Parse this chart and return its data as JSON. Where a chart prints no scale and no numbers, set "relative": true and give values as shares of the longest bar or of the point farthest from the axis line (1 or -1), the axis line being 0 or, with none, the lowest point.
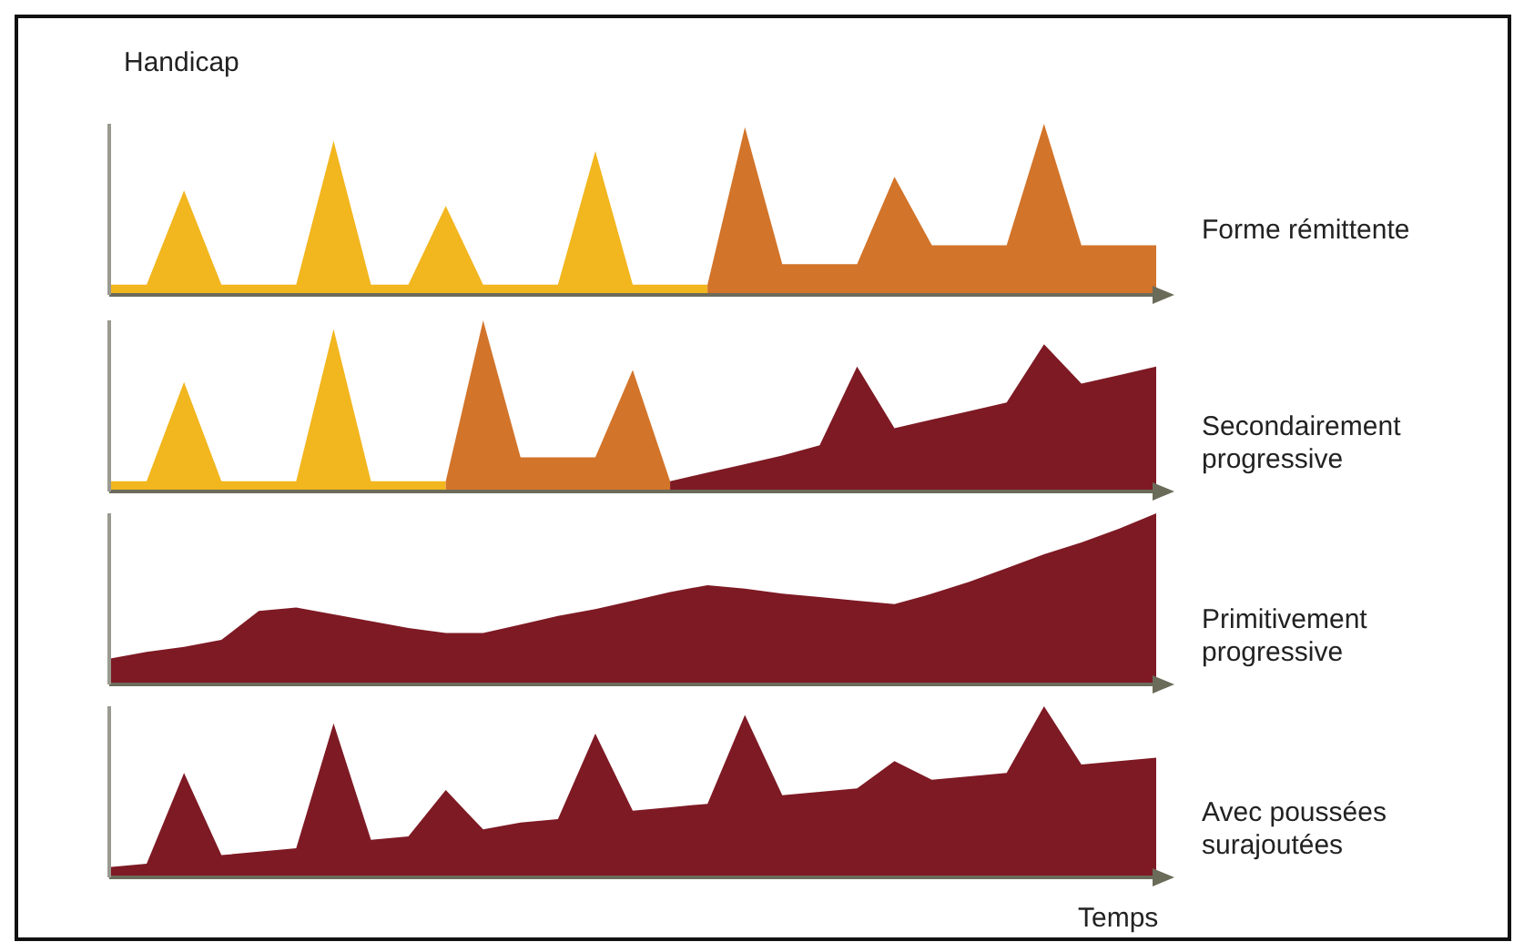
{
  "chart_data": [
    {
      "type": "area",
      "annotations": [
        "Forme rémittente"
      ],
      "ylabel": "Handicap",
      "relative": true,
      "categories": [
        null,
        null,
        null,
        null,
        null,
        null,
        null,
        null,
        null,
        null,
        null,
        null,
        null,
        null,
        null,
        null,
        null,
        null,
        null,
        null,
        null,
        null,
        null,
        null,
        null,
        null,
        null,
        null,
        null
      ],
      "series": [
        {
          "color": "#f2b61e",
          "values": [
            0.06,
            0.06,
            0.61,
            0.06,
            0.06,
            0.06,
            0.9,
            0.06,
            0.06,
            0.52,
            0.06,
            0.06,
            0.06,
            0.84,
            0.06,
            0.06,
            0.06,
            null,
            null,
            null,
            null,
            null,
            null,
            null,
            null,
            null,
            null,
            null,
            null
          ]
        },
        {
          "color": "#d2742a",
          "values": [
            null,
            null,
            null,
            null,
            null,
            null,
            null,
            null,
            null,
            null,
            null,
            null,
            null,
            null,
            null,
            null,
            0.06,
            0.98,
            0.18,
            0.18,
            0.18,
            0.69,
            0.29,
            0.29,
            0.29,
            1.0,
            0.29,
            0.29,
            0.29
          ]
        }
      ]
    },
    {
      "type": "area",
      "annotations": [
        "Secondairement progressive"
      ],
      "relative": true,
      "categories": [
        null,
        null,
        null,
        null,
        null,
        null,
        null,
        null,
        null,
        null,
        null,
        null,
        null,
        null,
        null,
        null,
        null,
        null,
        null,
        null,
        null,
        null,
        null,
        null,
        null,
        null,
        null,
        null,
        null
      ],
      "series": [
        {
          "color": "#f2b61e",
          "values": [
            0.06,
            0.06,
            0.64,
            0.06,
            0.06,
            0.06,
            0.95,
            0.06,
            0.06,
            0.06,
            null,
            null,
            null,
            null,
            null,
            null,
            null,
            null,
            null,
            null,
            null,
            null,
            null,
            null,
            null,
            null,
            null,
            null,
            null
          ]
        },
        {
          "color": "#d2742a",
          "values": [
            null,
            null,
            null,
            null,
            null,
            null,
            null,
            null,
            null,
            0.06,
            1.0,
            0.2,
            0.2,
            0.2,
            0.71,
            0.06,
            null,
            null,
            null,
            null,
            null,
            null,
            null,
            null,
            null,
            null,
            null,
            null,
            null
          ]
        },
        {
          "color": "#7e1a24",
          "values": [
            null,
            null,
            null,
            null,
            null,
            null,
            null,
            null,
            null,
            null,
            null,
            null,
            null,
            null,
            null,
            0.06,
            0.11,
            0.16,
            0.21,
            0.27,
            0.73,
            0.37,
            0.42,
            0.47,
            0.52,
            0.86,
            0.63,
            0.68,
            0.73
          ]
        }
      ]
    },
    {
      "type": "area",
      "annotations": [
        "Primitivement progressive"
      ],
      "relative": true,
      "categories": [
        null,
        null,
        null,
        null,
        null,
        null,
        null,
        null,
        null,
        null,
        null,
        null,
        null,
        null,
        null,
        null,
        null,
        null,
        null,
        null,
        null,
        null,
        null,
        null,
        null,
        null,
        null,
        null,
        null
      ],
      "series": [
        {
          "color": "#7e1a24",
          "values": [
            0.15,
            0.19,
            0.22,
            0.26,
            0.43,
            0.45,
            0.41,
            0.37,
            0.33,
            0.3,
            0.3,
            0.35,
            0.4,
            0.44,
            0.49,
            0.54,
            0.58,
            0.56,
            0.53,
            0.51,
            0.49,
            0.47,
            0.53,
            0.6,
            0.68,
            0.76,
            0.83,
            0.91,
            1.0
          ]
        }
      ]
    },
    {
      "type": "area",
      "annotations": [
        "Avec poussées surajoutées"
      ],
      "xlabel": "Temps",
      "relative": true,
      "categories": [
        null,
        null,
        null,
        null,
        null,
        null,
        null,
        null,
        null,
        null,
        null,
        null,
        null,
        null,
        null,
        null,
        null,
        null,
        null,
        null,
        null,
        null,
        null,
        null,
        null,
        null,
        null,
        null,
        null
      ],
      "series": [
        {
          "color": "#7e1a24",
          "values": [
            0.06,
            0.08,
            0.61,
            0.13,
            0.15,
            0.17,
            0.9,
            0.22,
            0.24,
            0.51,
            0.28,
            0.32,
            0.34,
            0.84,
            0.39,
            0.41,
            0.43,
            0.95,
            0.48,
            0.5,
            0.52,
            0.68,
            0.57,
            0.59,
            0.61,
            1.0,
            0.66,
            0.68,
            0.7
          ]
        }
      ]
    }
  ]
}
